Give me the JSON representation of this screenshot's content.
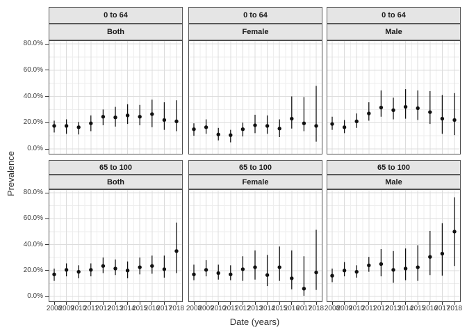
{
  "chart_data": {
    "type": "scatter",
    "subtype": "pointrange_faceted",
    "title": "",
    "ylabel": "Prevalence",
    "xlabel": "Date (years)",
    "x": [
      2008,
      2009,
      2010,
      2011,
      2012,
      2013,
      2014,
      2015,
      2016,
      2017,
      2018
    ],
    "x_tick_labels": [
      "2008",
      "2009",
      "2010",
      "2011",
      "2012",
      "2013",
      "2014",
      "2015",
      "2016",
      "2017",
      "2018"
    ],
    "y_tick_values": [
      0,
      20,
      40,
      60,
      80
    ],
    "y_tick_labels": [
      "0.0%",
      "20.0%",
      "40.0%",
      "60.0%",
      "80.0%"
    ],
    "ylim": [
      -4.5,
      83
    ],
    "grid": "major+minor",
    "legend_position": "none",
    "facet_rows": [
      "0 to 64",
      "65 to 100"
    ],
    "facet_cols": [
      "Both",
      "Female",
      "Male"
    ],
    "facets": [
      {
        "age_group": "0 to 64",
        "sex": "Both",
        "values": [
          17.5,
          17.5,
          16.5,
          19.5,
          24.5,
          24.0,
          25.5,
          24.5,
          26.5,
          22.0,
          21.0
        ],
        "lower": [
          12.5,
          11.5,
          11.0,
          13.5,
          18.0,
          17.0,
          19.0,
          18.0,
          16.5,
          14.5,
          13.5
        ],
        "upper": [
          21.5,
          22.5,
          20.5,
          25.5,
          30.0,
          32.0,
          34.0,
          33.5,
          37.5,
          35.5,
          37.0
        ]
      },
      {
        "age_group": "0 to 64",
        "sex": "Female",
        "values": [
          15.0,
          16.5,
          11.0,
          10.5,
          15.0,
          18.0,
          17.5,
          15.5,
          23.0,
          19.5,
          17.5
        ],
        "lower": [
          10.0,
          11.5,
          6.5,
          5.0,
          9.5,
          12.0,
          11.5,
          9.0,
          15.5,
          13.5,
          5.5
        ],
        "upper": [
          19.5,
          22.5,
          16.0,
          14.5,
          20.0,
          26.0,
          25.5,
          22.5,
          40.0,
          39.5,
          48.0
        ]
      },
      {
        "age_group": "0 to 64",
        "sex": "Male",
        "values": [
          19.0,
          16.5,
          21.0,
          27.0,
          31.5,
          29.5,
          32.0,
          31.0,
          28.0,
          23.0,
          22.0
        ],
        "lower": [
          14.5,
          12.0,
          16.0,
          21.5,
          24.5,
          22.5,
          23.0,
          22.0,
          19.0,
          11.5,
          10.5
        ],
        "upper": [
          24.5,
          22.0,
          27.0,
          35.5,
          44.5,
          39.0,
          45.5,
          44.5,
          44.0,
          41.0,
          42.5
        ]
      },
      {
        "age_group": "65 to 100",
        "sex": "Both",
        "values": [
          17.0,
          20.5,
          19.0,
          20.5,
          23.5,
          21.5,
          20.0,
          22.5,
          23.5,
          21.0,
          35.0
        ],
        "lower": [
          12.0,
          15.5,
          14.0,
          15.5,
          18.0,
          16.5,
          14.0,
          17.0,
          17.5,
          14.5,
          18.0
        ],
        "upper": [
          21.5,
          25.5,
          24.0,
          25.5,
          30.0,
          28.5,
          27.0,
          30.0,
          31.5,
          31.5,
          57.0
        ]
      },
      {
        "age_group": "65 to 100",
        "sex": "Female",
        "values": [
          17.0,
          20.5,
          18.0,
          17.0,
          21.0,
          22.5,
          16.5,
          22.5,
          14.0,
          6.0,
          18.5
        ],
        "lower": [
          12.5,
          15.5,
          13.0,
          12.5,
          12.0,
          13.0,
          8.0,
          12.0,
          5.5,
          0.5,
          5.0
        ],
        "upper": [
          24.5,
          28.0,
          24.5,
          24.0,
          31.0,
          35.5,
          32.0,
          38.5,
          35.5,
          31.0,
          51.5
        ]
      },
      {
        "age_group": "65 to 100",
        "sex": "Male",
        "values": [
          16.0,
          20.0,
          19.0,
          24.0,
          25.0,
          20.5,
          21.5,
          22.5,
          30.5,
          33.0,
          50.0
        ],
        "lower": [
          11.0,
          15.5,
          14.5,
          19.0,
          15.5,
          10.5,
          12.5,
          12.0,
          16.5,
          16.0,
          23.5
        ],
        "upper": [
          21.5,
          26.5,
          24.0,
          30.5,
          36.5,
          35.0,
          37.0,
          39.5,
          50.5,
          56.5,
          76.5
        ]
      }
    ],
    "colors": {
      "point": "#111111",
      "errorbar": "#111111",
      "strip_fill": "#e5e5e5",
      "strip_border": "#595959",
      "panel_border": "#4d4d4d",
      "grid_major": "#dcdcdc",
      "grid_minor": "#eeeeee",
      "axis_text": "#3d3d3d",
      "tick_mark": "#333333",
      "background": "#ffffff"
    }
  }
}
